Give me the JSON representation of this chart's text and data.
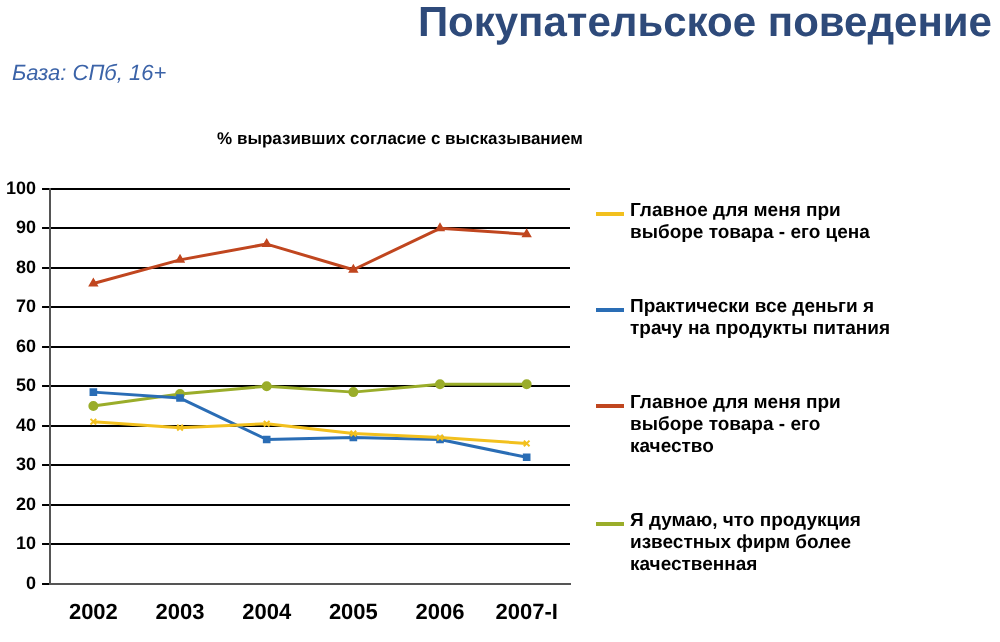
{
  "chart_data": {
    "type": "line",
    "title": "Покупательское поведение",
    "subtitle": "База: СПб, 16+",
    "annotations": [
      "% выразивших согласие с высказыванием"
    ],
    "categories": [
      "2002",
      "2003",
      "2004",
      "2005",
      "2006",
      "2007-I"
    ],
    "series": [
      {
        "name": "Главное для меня при выборе товара - его цена",
        "color": "#f2c01e",
        "marker": "cross",
        "values": [
          41,
          39.5,
          40.5,
          38,
          37,
          35.5
        ]
      },
      {
        "name": "Практически все деньги я трачу на продукты питания",
        "color": "#2a6db5",
        "marker": "square",
        "values": [
          48.5,
          47,
          36.5,
          37,
          36.5,
          32
        ]
      },
      {
        "name": "Главное для меня при выборе товара - его качество",
        "color": "#c0461f",
        "marker": "triangle",
        "values": [
          76,
          82,
          86,
          79.5,
          90,
          88.5
        ]
      },
      {
        "name": "Я думаю, что продукция известных фирм более качественная",
        "color": "#9aad2a",
        "marker": "circle",
        "values": [
          45,
          48,
          50,
          48.5,
          50.5,
          50.5
        ]
      }
    ],
    "ylim": [
      0,
      100
    ],
    "yticks": [
      0,
      10,
      20,
      30,
      40,
      50,
      60,
      70,
      80,
      90,
      100
    ],
    "grid": "y",
    "legend": "right",
    "line_style": "solid"
  }
}
